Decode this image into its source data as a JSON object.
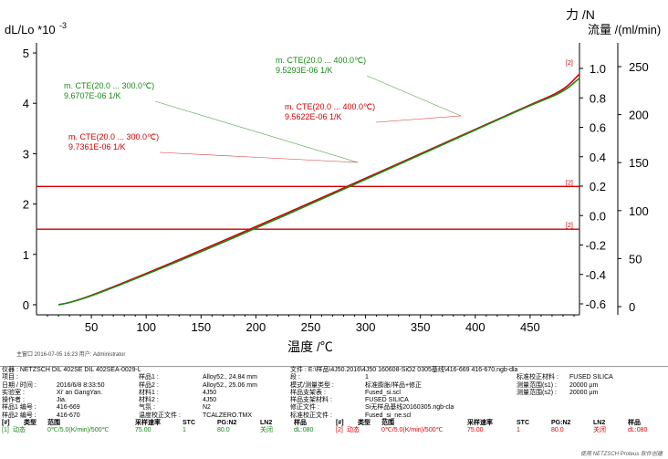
{
  "chart_data": {
    "type": "line",
    "y_left_label": "dL/Lo *10",
    "y_left_exp": "-3",
    "y_right1_label": "力 /N",
    "y_right2_label": "流量 /(ml/min)",
    "x_label": "温度 /℃",
    "x_ticks": [
      50,
      100,
      150,
      200,
      250,
      300,
      350,
      400,
      450
    ],
    "x_range": [
      0,
      495
    ],
    "y_left_ticks": [
      0,
      1,
      2,
      3,
      4,
      5
    ],
    "y_left_range": [
      -0.2,
      5.2
    ],
    "y_right1_ticks": [
      "-0.6",
      "-0.4",
      "-0.2",
      "0.0",
      "0.2",
      "0.4",
      "0.6",
      "0.8",
      "1.0"
    ],
    "y_right2_ticks": [
      "0",
      "50",
      "100",
      "150",
      "200",
      "250"
    ],
    "series": [
      {
        "color": "#d00000",
        "x": [
          20,
          30,
          50,
          100,
          150,
          200,
          250,
          300,
          350,
          400,
          450,
          480,
          495
        ],
        "y": [
          0.0,
          0.04,
          0.18,
          0.62,
          1.08,
          1.55,
          2.03,
          2.51,
          3.0,
          3.48,
          3.97,
          4.25,
          4.58
        ]
      },
      {
        "color": "#1a8a1a",
        "x": [
          20,
          30,
          50,
          100,
          150,
          200,
          250,
          300,
          350,
          400,
          450,
          480,
          495
        ],
        "y": [
          0.0,
          0.04,
          0.17,
          0.6,
          1.05,
          1.52,
          2.0,
          2.49,
          2.98,
          3.47,
          3.96,
          4.22,
          4.5
        ]
      }
    ],
    "hlines": [
      {
        "color": "#d00000",
        "y": 2.35,
        "tag": "[2]"
      },
      {
        "color": "#d00000",
        "y": 1.5,
        "tag": "[2]"
      }
    ],
    "end_tag": "[2]",
    "annotations": [
      {
        "color": "#1a8a1a",
        "line1": "m. CTE(20.0 ... 400.0℃)",
        "line2": "9.5293E-06 1/K",
        "tx": 302,
        "ty": 69,
        "ax": 505,
        "ay": 127
      },
      {
        "color": "#1a8a1a",
        "line1": "m. CTE(20.0 ... 300.0℃)",
        "line2": "9.6707E-06 1/K",
        "tx": 70,
        "ty": 97,
        "ax": 392,
        "ay": 178
      },
      {
        "color": "#d00000",
        "line1": "m. CTE(20.0 ... 400.0℃)",
        "line2": "9.5622E-06 1/K",
        "tx": 312,
        "ty": 120,
        "ax": 505,
        "ay": 127
      },
      {
        "color": "#d00000",
        "line1": "m. CTE(20.0 ... 300.0℃)",
        "line2": "9.7361E-06 1/K",
        "tx": 75,
        "ty": 153,
        "ax": 392,
        "ay": 178
      }
    ]
  },
  "meta_line": "主窗口    2016-07-05 16:23   用户: Administrator",
  "info": {
    "r1": [
      "仪器 : NETZSCH DIL 402SE DIL 402SEA-0029-L",
      "文件 : E:\\样品\\4J50.2016\\4J50 160608-SiO2 0305基线\\416-669 416-670.ngb-dla"
    ],
    "r2": [
      "项目 :",
      "",
      "样品1 :",
      "Alloy52., 24.84 mm",
      "段 :",
      "1",
      "标准校正材料 :",
      "FUSED SILICA"
    ],
    "r3": [
      "日期 / 时间 :",
      "2016/6/8 8:33:50",
      "样品2 :",
      "Alloy52., 25.06 mm",
      "模式/测量类型 :",
      "标准膨胀/样品+修正",
      "测量范围(s1) :",
      "20000 µm"
    ],
    "r4": [
      "实验室 :",
      "Xi' an GangYan.",
      "材料1 :",
      "4J50",
      "样品支架表 :",
      "Fused_si.scl",
      "测量范围(s2) :",
      "20000 µm"
    ],
    "r5": [
      "操作者 :",
      "Jia.",
      "材料2 :",
      "4J50",
      "样品支架材料 :",
      "FUSED SILICA",
      "",
      ""
    ],
    "r6": [
      "样品1 编号 :",
      "416-669",
      "气氛 :",
      "N2",
      "修正文件 :",
      "Si无样品基线20160305.ngb-cla",
      "",
      ""
    ],
    "r7": [
      "样品2 编号 :",
      "416-670",
      "温度校正文件 :",
      "TCALZERO.TMX",
      "标准校正文件 :",
      "Fused_si_ne.scl",
      "",
      ""
    ],
    "hdr": [
      "[#]",
      "类型",
      "范围",
      "采样速率",
      "STC",
      "PG:N2",
      "LN2",
      "样品",
      "[#]",
      "类型",
      "范围",
      "采样速率",
      "STC",
      "PG:N2",
      "LN2",
      "样品"
    ],
    "s1": [
      "[1]",
      "动态",
      "0℃/5.0(K/min)/500℃",
      "75.00",
      "1",
      "80.0",
      "关闭",
      "dL:080"
    ],
    "s2": [
      "[2]",
      "动态",
      "0℃/5.0(K/min)/500℃",
      "75.00",
      "1",
      "80.0",
      "关闭",
      "dL:080"
    ]
  },
  "footer": "使用 NETZSCH Proteus 软件创建"
}
